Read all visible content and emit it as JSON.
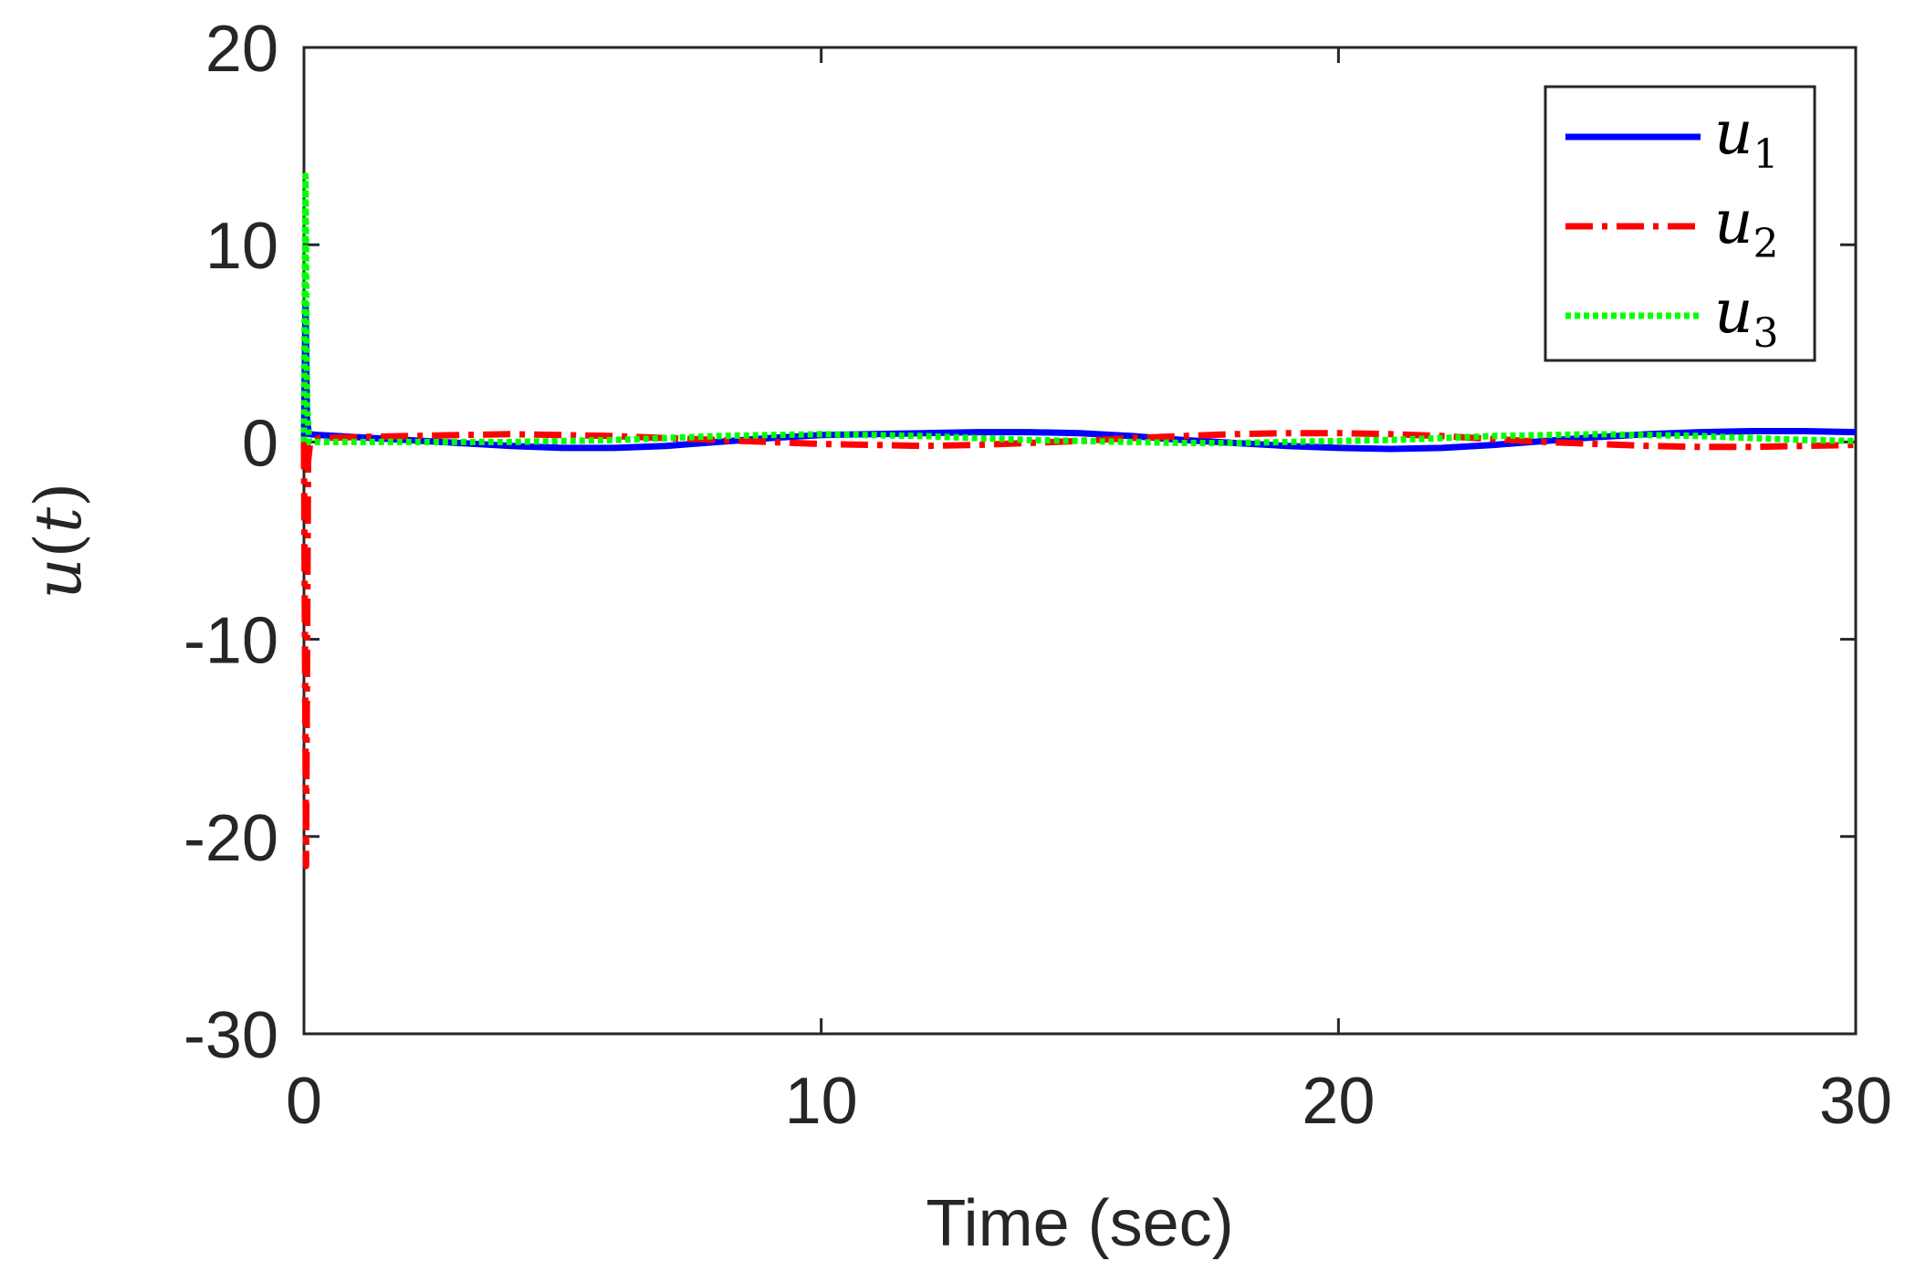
{
  "chart_data": {
    "type": "line",
    "xlabel": "Time (sec)",
    "ylabel": "u(t)",
    "ylabel_base": "u",
    "ylabel_arg": "t",
    "xlim": [
      0,
      30
    ],
    "ylim": [
      -30,
      20
    ],
    "xticks": [
      0,
      10,
      20,
      30
    ],
    "yticks": [
      20,
      10,
      0,
      -10,
      -20,
      -30
    ],
    "xtick_labels": [
      "0",
      "10",
      "20",
      "30"
    ],
    "ytick_labels": [
      "20",
      "10",
      "0",
      "-10",
      "-20",
      "-30"
    ],
    "grid": false,
    "legend_position": "top-right",
    "series": [
      {
        "name": "u1",
        "legend_base": "u",
        "legend_sub": "1",
        "color": "#0000ff",
        "dash": "solid",
        "x": [
          0,
          0.03,
          0.06,
          0.1,
          0.3,
          1,
          2,
          3,
          4,
          5,
          6,
          7,
          8,
          9,
          10,
          11,
          12,
          13,
          14,
          15,
          16,
          17,
          18,
          19,
          20,
          21,
          22,
          23,
          24,
          25,
          26,
          27,
          28,
          29,
          30
        ],
        "y": [
          0,
          7,
          1,
          0.4,
          0.35,
          0.25,
          0.1,
          -0.05,
          -0.2,
          -0.3,
          -0.3,
          -0.2,
          0,
          0.2,
          0.35,
          0.4,
          0.45,
          0.5,
          0.5,
          0.45,
          0.3,
          0.1,
          -0.05,
          -0.2,
          -0.3,
          -0.35,
          -0.3,
          -0.15,
          0.05,
          0.25,
          0.4,
          0.5,
          0.55,
          0.55,
          0.5
        ]
      },
      {
        "name": "u2",
        "legend_base": "u",
        "legend_sub": "2",
        "color": "#ff0000",
        "dash": "dash-dot",
        "x": [
          0,
          0.04,
          0.08,
          0.12,
          0.3,
          1,
          2,
          3,
          4,
          5,
          6,
          7,
          8,
          9,
          10,
          11,
          12,
          13,
          14,
          15,
          16,
          17,
          18,
          19,
          20,
          21,
          22,
          23,
          24,
          25,
          26,
          27,
          28,
          29,
          30
        ],
        "y": [
          0,
          -21.5,
          -1,
          0,
          0.2,
          0.25,
          0.3,
          0.35,
          0.4,
          0.35,
          0.3,
          0.2,
          0.1,
          0,
          -0.1,
          -0.15,
          -0.2,
          -0.15,
          -0.05,
          0.05,
          0.2,
          0.3,
          0.4,
          0.45,
          0.45,
          0.4,
          0.3,
          0.15,
          0,
          -0.1,
          -0.2,
          -0.25,
          -0.25,
          -0.2,
          -0.15
        ]
      },
      {
        "name": "u3",
        "legend_base": "u",
        "legend_sub": "3",
        "color": "#00ff00",
        "dash": "dotted",
        "x": [
          0,
          0.03,
          0.06,
          0.1,
          0.3,
          1,
          2,
          3,
          4,
          5,
          6,
          7,
          8,
          9,
          10,
          11,
          12,
          13,
          14,
          15,
          16,
          17,
          18,
          19,
          20,
          21,
          22,
          23,
          24,
          25,
          26,
          27,
          28,
          29,
          30
        ],
        "y": [
          0,
          13.5,
          2,
          0,
          0,
          0,
          0,
          0,
          0,
          0.05,
          0.1,
          0.2,
          0.3,
          0.35,
          0.4,
          0.35,
          0.3,
          0.2,
          0.1,
          0.05,
          0,
          -0.05,
          -0.05,
          0,
          0.05,
          0.1,
          0.2,
          0.3,
          0.35,
          0.4,
          0.35,
          0.3,
          0.2,
          0.1,
          0.05
        ]
      }
    ]
  }
}
